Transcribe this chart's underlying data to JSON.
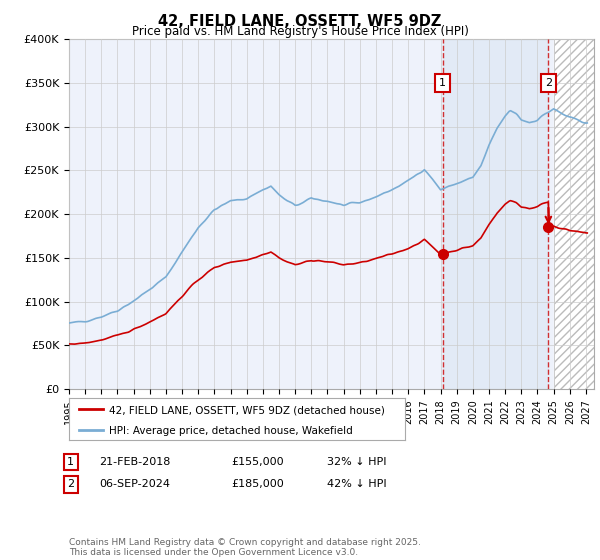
{
  "title": "42, FIELD LANE, OSSETT, WF5 9DZ",
  "subtitle": "Price paid vs. HM Land Registry's House Price Index (HPI)",
  "legend_line1": "42, FIELD LANE, OSSETT, WF5 9DZ (detached house)",
  "legend_line2": "HPI: Average price, detached house, Wakefield",
  "annotation1_date": "21-FEB-2018",
  "annotation1_price": "£155,000",
  "annotation1_hpi": "32% ↓ HPI",
  "annotation2_date": "06-SEP-2024",
  "annotation2_price": "£185,000",
  "annotation2_hpi": "42% ↓ HPI",
  "footer": "Contains HM Land Registry data © Crown copyright and database right 2025.\nThis data is licensed under the Open Government Licence v3.0.",
  "red_color": "#cc0000",
  "blue_color": "#7aadd4",
  "blue_fill": "#dde8f5",
  "background_color": "#eef2fb",
  "grid_color": "#cccccc",
  "hatch_color": "#bbbbbb",
  "ylim": [
    0,
    400000
  ],
  "yticks": [
    0,
    50000,
    100000,
    150000,
    200000,
    250000,
    300000,
    350000,
    400000
  ],
  "ytick_labels": [
    "£0",
    "£50K",
    "£100K",
    "£150K",
    "£200K",
    "£250K",
    "£300K",
    "£350K",
    "£400K"
  ],
  "xlim_start": 1995.0,
  "xlim_end": 2027.5,
  "sale1_year": 2018.122,
  "sale1_price": 155000,
  "sale2_year": 2024.676,
  "sale2_price": 185000,
  "hatch_start": 2025.0
}
